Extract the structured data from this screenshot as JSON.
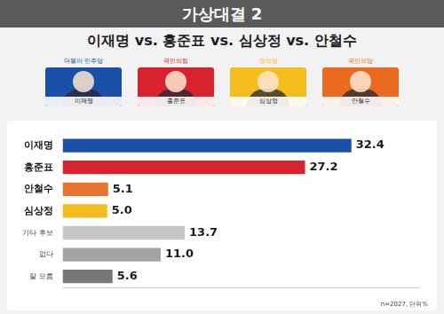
{
  "candidates": [
    {
      "name": "이재명",
      "party": "더불어 민주당",
      "color": "#1c4fa8"
    },
    {
      "name": "홍준표",
      "party": "국민의힘",
      "color": "#d8232e"
    },
    {
      "name": "심상정",
      "party": "정의당",
      "color": "#f2bd1d"
    },
    {
      "name": "안철수",
      "party": "국민의당",
      "color": "#ea6a20"
    }
  ],
  "chart_data": {
    "type": "bar",
    "title": "가상대결 2",
    "subtitle": "이재명 vs. 홍준표 vs. 심상정 vs. 안철수",
    "annotations": [
      "n=2027, 단위%"
    ],
    "orientation": "horizontal",
    "categories": [
      "이재명",
      "홍준표",
      "안철수",
      "심상정",
      "기타 후보",
      "없다",
      "잘 모름"
    ],
    "values": [
      32.4,
      27.2,
      5.1,
      5.0,
      13.7,
      11.0,
      5.6
    ],
    "value_labels": [
      "32.4",
      "27.2",
      "5.1",
      "5.0",
      "13.7",
      "11.0",
      "5.6"
    ],
    "colors": [
      "#1c4fa8",
      "#d8232e",
      "#e8732a",
      "#f2bd1d",
      "#c6c6c6",
      "#a4a4a4",
      "#777777"
    ],
    "xlim": [
      0,
      40
    ],
    "data_labels": true,
    "tick_labels": "y",
    "grid": false
  }
}
